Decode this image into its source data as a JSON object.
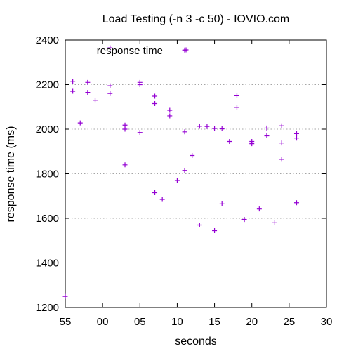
{
  "chart_data": {
    "type": "scatter",
    "title": "Load Testing (-n 3 -c 50) - IOVIO.com",
    "xlabel": "seconds",
    "ylabel": "response time (ms)",
    "xlim": [
      0,
      35
    ],
    "ylim": [
      1200,
      2400
    ],
    "xticks": [
      {
        "value": 0,
        "label": "55"
      },
      {
        "value": 5,
        "label": "00"
      },
      {
        "value": 10,
        "label": "05"
      },
      {
        "value": 15,
        "label": "10"
      },
      {
        "value": 20,
        "label": "15"
      },
      {
        "value": 25,
        "label": "20"
      },
      {
        "value": 30,
        "label": "25"
      },
      {
        "value": 35,
        "label": "30"
      }
    ],
    "yticks": [
      1200,
      1400,
      1600,
      1800,
      2000,
      2200,
      2400
    ],
    "grid": "horizontal dotted",
    "legend_position": "top-left",
    "series": [
      {
        "name": "response time",
        "color": "#9400d3",
        "marker": "plus",
        "points": [
          [
            0,
            1250
          ],
          [
            1,
            2215
          ],
          [
            1,
            2170
          ],
          [
            2,
            2028
          ],
          [
            3,
            2210
          ],
          [
            3,
            2165
          ],
          [
            4,
            2130
          ],
          [
            6,
            2365
          ],
          [
            6,
            2195
          ],
          [
            6,
            2160
          ],
          [
            8,
            2018
          ],
          [
            8,
            2000
          ],
          [
            8,
            1840
          ],
          [
            10,
            2210
          ],
          [
            10,
            2200
          ],
          [
            10,
            1985
          ],
          [
            12,
            2148
          ],
          [
            12,
            2115
          ],
          [
            12,
            1715
          ],
          [
            13,
            1685
          ],
          [
            14,
            2085
          ],
          [
            14,
            2060
          ],
          [
            15,
            1770
          ],
          [
            16,
            2355
          ],
          [
            16,
            1988
          ],
          [
            16,
            1815
          ],
          [
            17,
            1882
          ],
          [
            18,
            2013
          ],
          [
            18,
            1570
          ],
          [
            19,
            2012
          ],
          [
            20,
            2003
          ],
          [
            20,
            1545
          ],
          [
            21,
            2002
          ],
          [
            21,
            1665
          ],
          [
            22,
            1945
          ],
          [
            23,
            2150
          ],
          [
            23,
            2098
          ],
          [
            24,
            1595
          ],
          [
            25,
            1945
          ],
          [
            25,
            1935
          ],
          [
            26,
            1642
          ],
          [
            27,
            2005
          ],
          [
            27,
            1970
          ],
          [
            28,
            1580
          ],
          [
            29,
            2015
          ],
          [
            29,
            1938
          ],
          [
            29,
            1865
          ],
          [
            31,
            1980
          ],
          [
            31,
            1960
          ],
          [
            31,
            1670
          ]
        ]
      }
    ]
  }
}
